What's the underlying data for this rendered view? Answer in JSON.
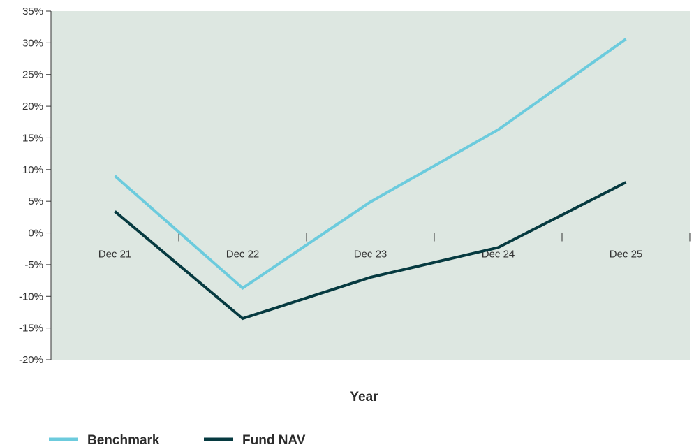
{
  "chart_data": {
    "type": "line",
    "title": "",
    "xlabel": "Year",
    "ylabel": "",
    "categories": [
      "Dec 21",
      "Dec 22",
      "Dec 23",
      "Dec 24",
      "Dec 25"
    ],
    "ylim": [
      -20,
      35
    ],
    "yticks": [
      35,
      30,
      25,
      20,
      15,
      10,
      5,
      0,
      -5,
      -10,
      -15,
      -20
    ],
    "ytick_labels": [
      "35%",
      "30%",
      "25%",
      "20%",
      "15%",
      "10%",
      "5%",
      "0%",
      "-5%",
      "-10%",
      "-15%",
      "-20%"
    ],
    "grid": false,
    "legend_position": "bottom-left",
    "plot_background": "#dde7e1",
    "series": [
      {
        "name": "Benchmark",
        "color": "#6ccbdd",
        "values": [
          9.0,
          -8.7,
          4.9,
          16.3,
          30.6
        ]
      },
      {
        "name": "Fund NAV",
        "color": "#063a40",
        "values": [
          3.4,
          -13.5,
          -7.0,
          -2.3,
          8.0
        ]
      }
    ]
  }
}
